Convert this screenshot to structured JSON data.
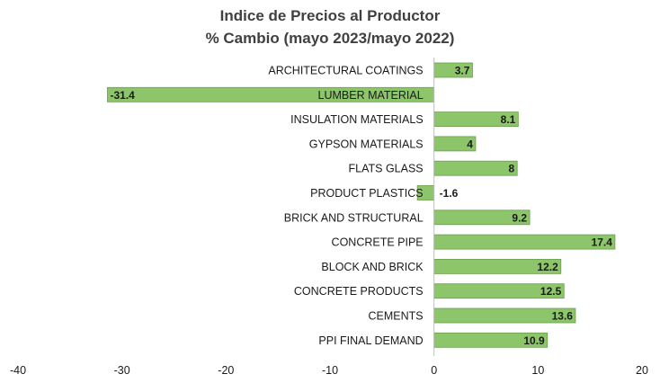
{
  "chart_data": {
    "type": "bar",
    "orientation": "horizontal",
    "title_lines": [
      "Indice de Precios al Productor",
      "% Cambio (mayo 2023/mayo 2022)"
    ],
    "categories": [
      "ARCHITECTURAL COATINGS",
      "LUMBER MATERIAL",
      "INSULATION MATERIALS",
      "GYPSON MATERIALS",
      "FLATS GLASS",
      "PRODUCT PLASTICS",
      "BRICK AND STRUCTURAL",
      "CONCRETE PIPE",
      "BLOCK AND BRICK",
      "CONCRETE PRODUCTS",
      "CEMENTS",
      "PPI FINAL DEMAND"
    ],
    "values": [
      3.7,
      -31.4,
      8.1,
      4,
      8,
      -1.6,
      9.2,
      17.4,
      12.2,
      12.5,
      13.6,
      10.9
    ],
    "data_labels": [
      "3.7",
      "-31.4",
      "8.1",
      "4",
      "8",
      "-1.6",
      "9.2",
      "17.4",
      "12.2",
      "12.5",
      "13.6",
      "10.9"
    ],
    "xlim": [
      -40,
      20
    ],
    "x_ticks": [
      -40,
      -30,
      -20,
      -10,
      0,
      10,
      20
    ],
    "x_tick_labels": [
      "-40",
      "-30",
      "-20",
      "-10",
      "0",
      "10",
      "20"
    ],
    "xlabel": "",
    "ylabel": "",
    "grid": false,
    "legend": "none",
    "colors": {
      "bar_fill": "#8cc56a",
      "bar_stroke": "#6a9e4b",
      "axis": "#bfbfbf",
      "text": "#1a1a1a",
      "title": "#404040"
    }
  }
}
